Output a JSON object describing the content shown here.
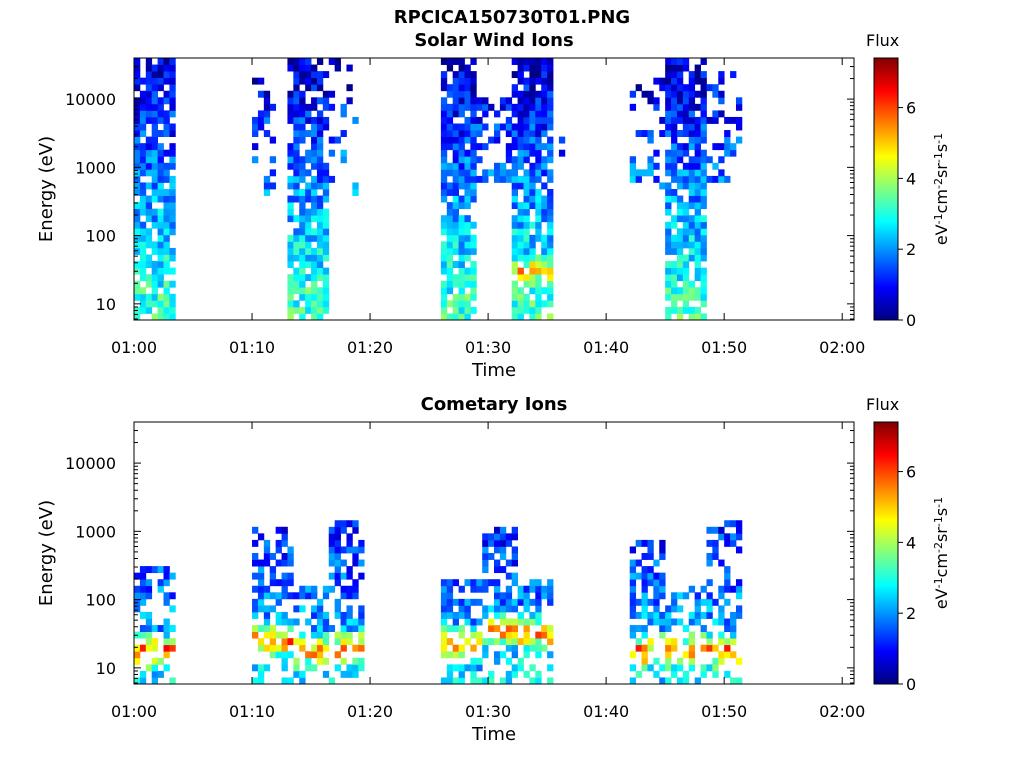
{
  "figure": {
    "title": "RPCICA150730T01.PNG"
  },
  "chart_data": [
    {
      "type": "heatmap",
      "title": "Solar Wind Ions",
      "xlabel": "Time",
      "ylabel": "Energy (eV)",
      "xticks": [
        "01:00",
        "01:10",
        "01:20",
        "01:30",
        "01:40",
        "01:50",
        "02:00"
      ],
      "xlim": [
        "01:00",
        "02:01"
      ],
      "yscale": "log",
      "ylim": [
        5.8,
        40000
      ],
      "yticks": [
        10,
        100,
        1000,
        10000
      ],
      "ytick_labels": [
        "10",
        "100",
        "1000",
        "10000"
      ],
      "colorbar": {
        "title": "Flux",
        "label": "eV-1cm-2sr-1s-1",
        "range": [
          0,
          7.4
        ],
        "ticks": [
          0,
          2,
          4,
          6
        ],
        "tick_labels": [
          "0",
          "2",
          "4",
          "6"
        ],
        "colormap": "jet"
      },
      "grid": false,
      "data_blocks": [
        {
          "start": "01:00",
          "end": "01:03.5",
          "emin": 6,
          "emax": 40000,
          "density": 0.85,
          "hot_energy": 0
        },
        {
          "start": "01:10",
          "end": "01:12",
          "emin": 400,
          "emax": 20000,
          "density": 0.25,
          "hot_energy": 0
        },
        {
          "start": "01:13",
          "end": "01:16.2",
          "emin": 6,
          "emax": 40000,
          "density": 0.8,
          "hot_energy": 0
        },
        {
          "start": "01:16.5",
          "end": "01:19",
          "emin": 400,
          "emax": 40000,
          "density": 0.2,
          "hot_energy": 0
        },
        {
          "start": "01:26",
          "end": "01:29",
          "emin": 6,
          "emax": 40000,
          "density": 0.85,
          "hot_energy": 0
        },
        {
          "start": "01:29",
          "end": "01:32",
          "emin": 600,
          "emax": 10000,
          "density": 0.5,
          "hot_energy": 0
        },
        {
          "start": "01:32",
          "end": "01:35.5",
          "emin": 6,
          "emax": 40000,
          "density": 0.85,
          "hot_energy": 30
        },
        {
          "start": "01:36",
          "end": "01:36.5",
          "emin": 1000,
          "emax": 3000,
          "density": 0.3,
          "hot_energy": 0
        },
        {
          "start": "01:42",
          "end": "01:45",
          "emin": 500,
          "emax": 20000,
          "density": 0.3,
          "hot_energy": 0
        },
        {
          "start": "01:45",
          "end": "01:48.5",
          "emin": 6,
          "emax": 40000,
          "density": 0.85,
          "hot_energy": 0
        },
        {
          "start": "01:48.5",
          "end": "01:51.5",
          "emin": 600,
          "emax": 25000,
          "density": 0.3,
          "hot_energy": 0
        }
      ]
    },
    {
      "type": "heatmap",
      "title": "Cometary Ions",
      "xlabel": "Time",
      "ylabel": "Energy (eV)",
      "xticks": [
        "01:00",
        "01:10",
        "01:20",
        "01:30",
        "01:40",
        "01:50",
        "02:00"
      ],
      "xlim": [
        "01:00",
        "02:01"
      ],
      "yscale": "log",
      "ylim": [
        5.8,
        40000
      ],
      "yticks": [
        10,
        100,
        1000,
        10000
      ],
      "ytick_labels": [
        "10",
        "100",
        "1000",
        "10000"
      ],
      "colorbar": {
        "title": "Flux",
        "label": "eV-1cm-2sr-1s-1",
        "range": [
          0,
          7.4
        ],
        "ticks": [
          0,
          2,
          4,
          6
        ],
        "tick_labels": [
          "0",
          "2",
          "4",
          "6"
        ],
        "colormap": "jet"
      },
      "grid": false,
      "data_blocks": [
        {
          "start": "01:00",
          "end": "01:03.5",
          "emin": 6,
          "emax": 300,
          "density": 0.6,
          "hot_energy": 18
        },
        {
          "start": "01:10",
          "end": "01:13.5",
          "emin": 6,
          "emax": 1300,
          "density": 0.55,
          "hot_energy": 25
        },
        {
          "start": "01:13.5",
          "end": "01:16.5",
          "emin": 6,
          "emax": 150,
          "density": 0.55,
          "hot_energy": 18
        },
        {
          "start": "01:16.5",
          "end": "01:19.5",
          "emin": 6,
          "emax": 1400,
          "density": 0.55,
          "hot_energy": 20
        },
        {
          "start": "01:26",
          "end": "01:29.5",
          "emin": 6,
          "emax": 200,
          "density": 0.6,
          "hot_energy": 22
        },
        {
          "start": "01:29.5",
          "end": "01:32.5",
          "emin": 6,
          "emax": 1300,
          "density": 0.6,
          "hot_energy": 35
        },
        {
          "start": "01:32.5",
          "end": "01:35.5",
          "emin": 6,
          "emax": 200,
          "density": 0.6,
          "hot_energy": 32
        },
        {
          "start": "01:42",
          "end": "01:45",
          "emin": 6,
          "emax": 800,
          "density": 0.55,
          "hot_energy": 18
        },
        {
          "start": "01:45",
          "end": "01:48.5",
          "emin": 6,
          "emax": 150,
          "density": 0.5,
          "hot_energy": 18
        },
        {
          "start": "01:48.5",
          "end": "01:51.5",
          "emin": 6,
          "emax": 1500,
          "density": 0.55,
          "hot_energy": 18
        }
      ]
    }
  ]
}
